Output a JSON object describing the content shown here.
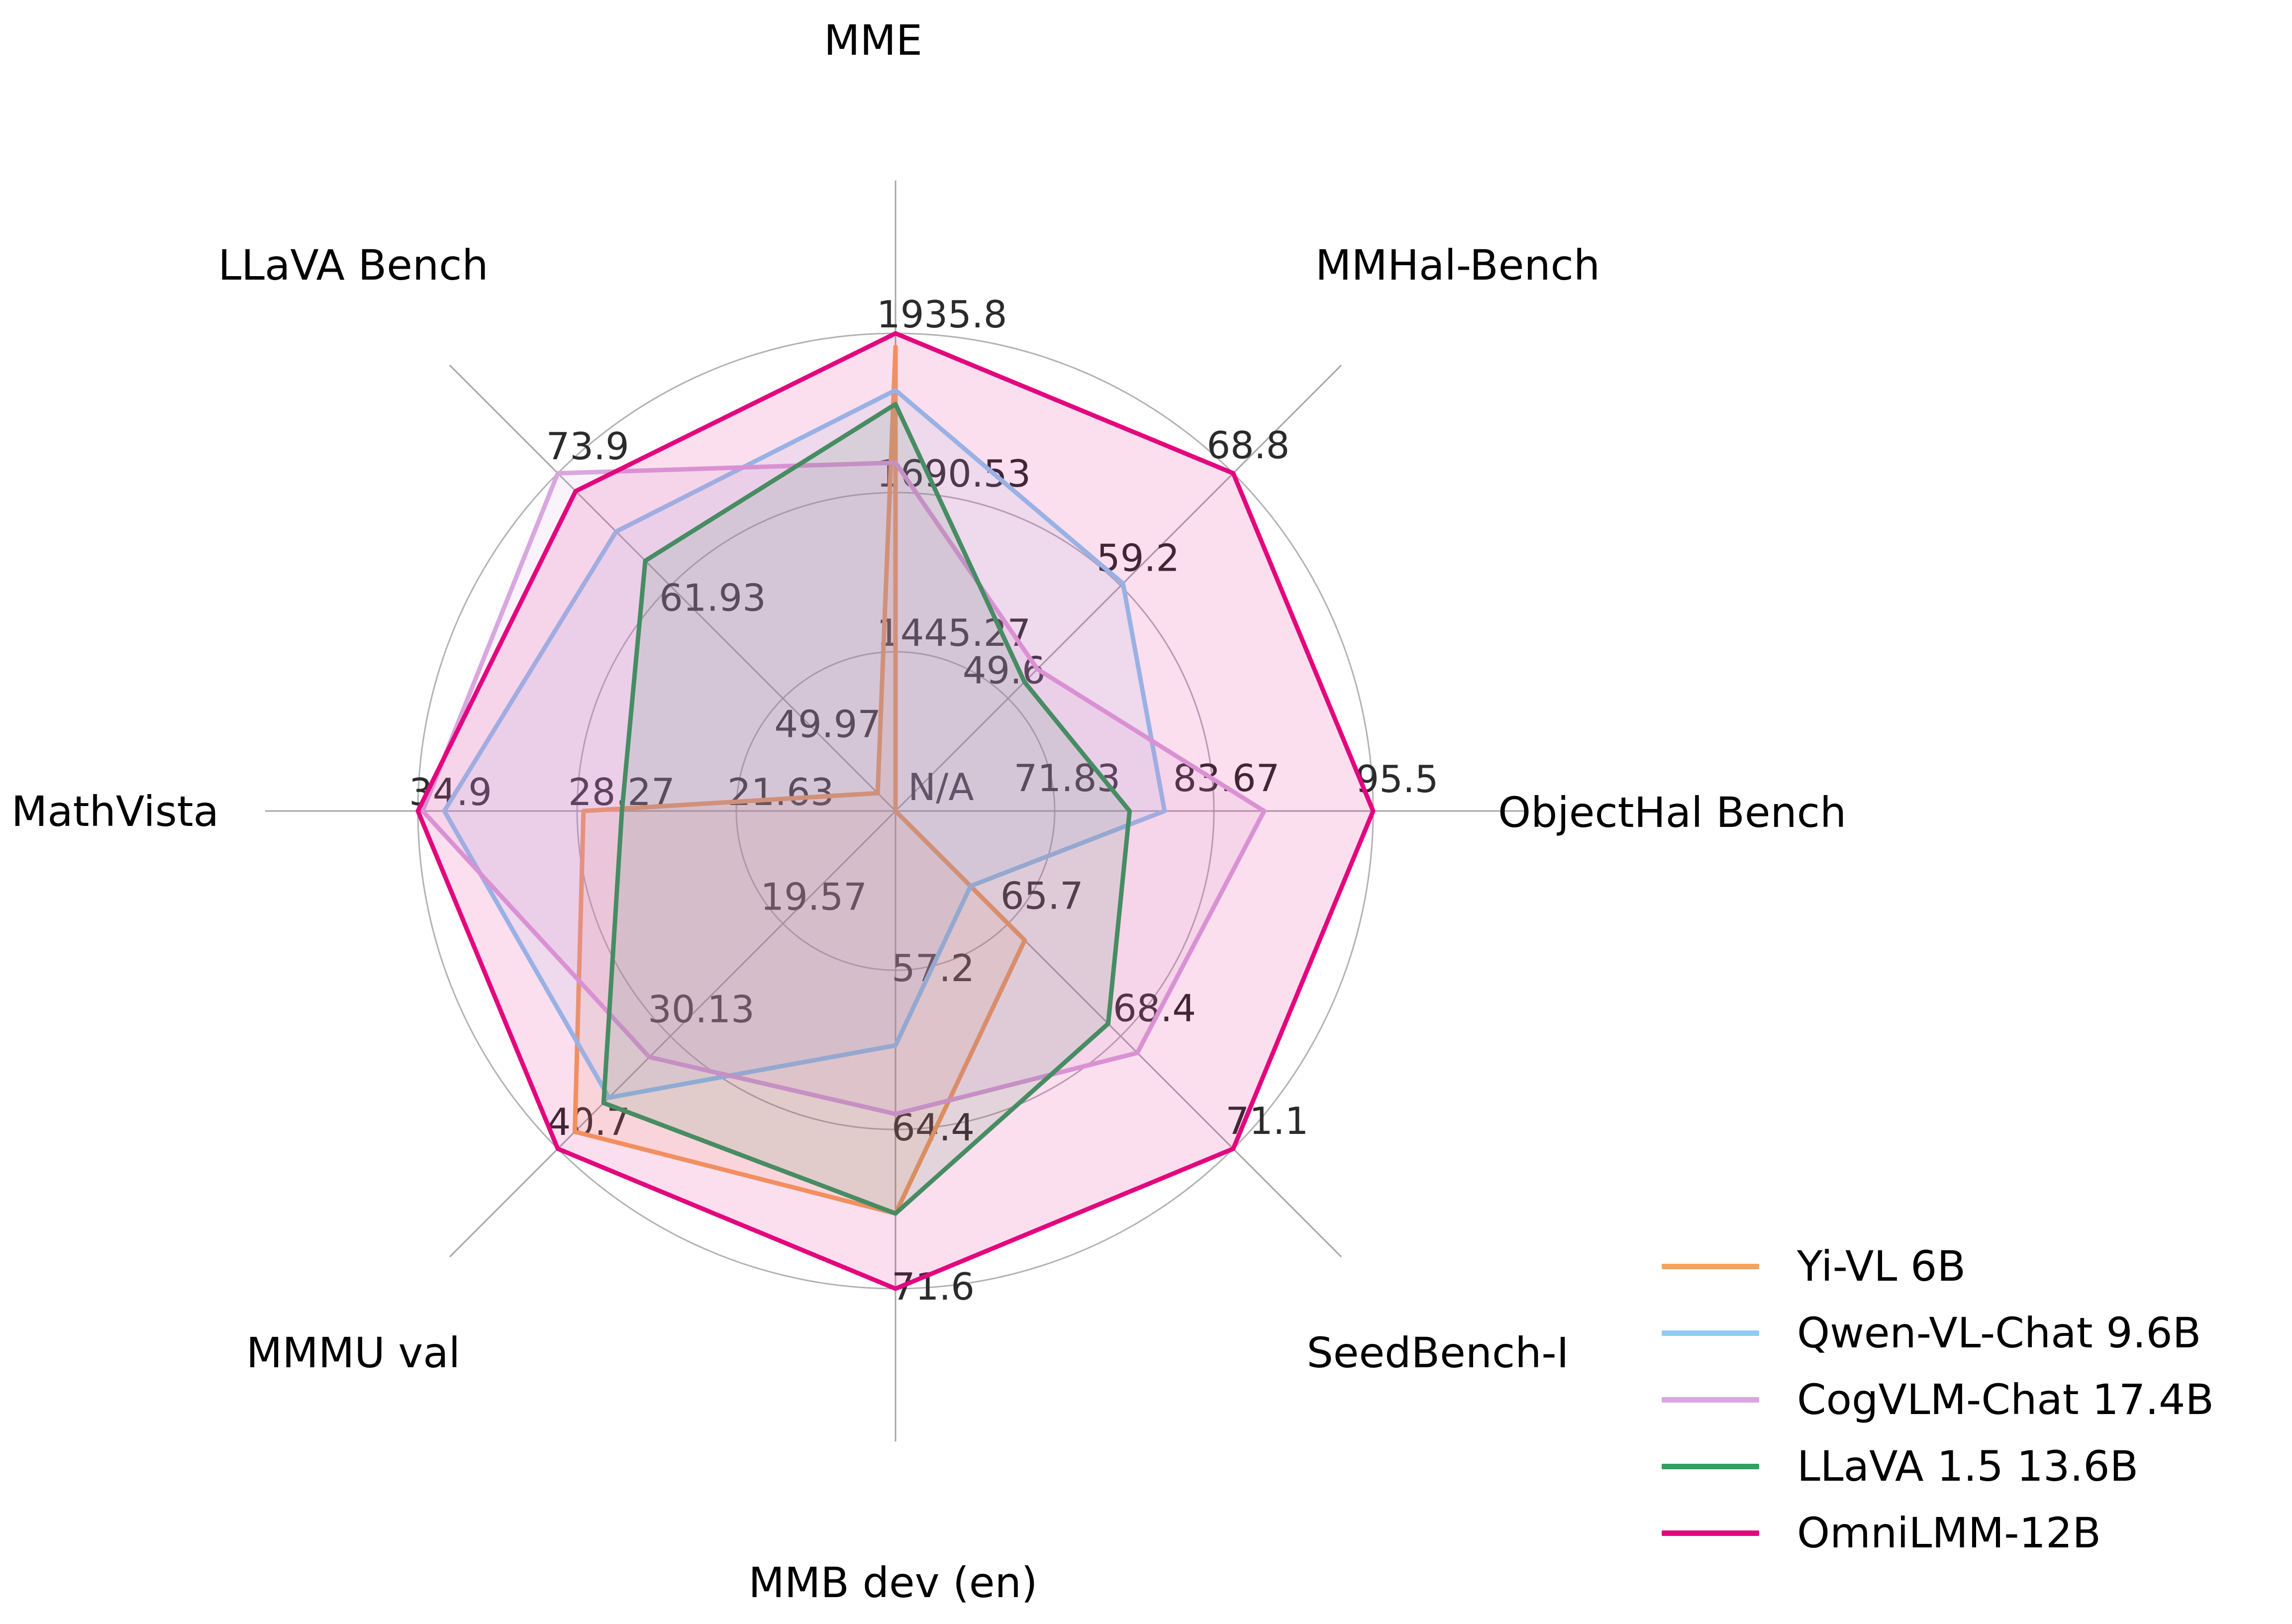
{
  "figure": {
    "background": "#ffffff"
  },
  "chart_data": {
    "type": "radar",
    "axes": [
      {
        "label": "MME",
        "min": 1200,
        "max": 1935.8,
        "tick_labels": [
          "1445.27",
          "1690.53",
          "1935.8"
        ]
      },
      {
        "label": "MMHal-Bench",
        "min": 40,
        "max": 68.8,
        "tick_labels": [
          "49.6",
          "59.2",
          "68.8"
        ]
      },
      {
        "label": "ObjectHal Bench",
        "min": 60,
        "max": 95.5,
        "tick_labels": [
          "71.83",
          "83.67",
          "95.5"
        ]
      },
      {
        "label": "SeedBench-I",
        "min": 63,
        "max": 71.1,
        "tick_labels": [
          "65.7",
          "68.4",
          "71.1"
        ]
      },
      {
        "label": "MMB dev (en)",
        "min": 50,
        "max": 71.6,
        "tick_labels": [
          "57.2",
          "64.4",
          "71.6"
        ]
      },
      {
        "label": "MMMU val",
        "min": 9,
        "max": 40.7,
        "tick_labels": [
          "19.57",
          "30.13",
          "40.7"
        ]
      },
      {
        "label": "MathVista",
        "min": 15,
        "max": 34.9,
        "tick_labels": [
          "21.63",
          "28.27",
          "34.9"
        ]
      },
      {
        "label": "LLaVA Bench",
        "min": 38,
        "max": 73.9,
        "tick_labels": [
          "49.97",
          "61.93",
          "73.9"
        ]
      }
    ],
    "center_label": "N/A",
    "rings": 3,
    "grid": {
      "ring_color": "#b4b0b4",
      "spoke_color": "#a8a4a8"
    },
    "legend_position": "bottom-right",
    "series": [
      {
        "name": "Yi-VL 6B",
        "color": "#f5a35c",
        "values": [
          1915.1,
          null,
          null,
          66.1,
          68.2,
          39.1,
          28.0,
          39.9
        ]
      },
      {
        "name": "Qwen-VL-Chat 9.6B",
        "color": "#8fcbf4",
        "values": [
          1848.3,
          59.4,
          80.0,
          64.8,
          60.6,
          35.9,
          33.8,
          67.7
        ]
      },
      {
        "name": "CogVLM-Chat 17.4B",
        "color": "#d9a6e0",
        "values": [
          1736.6,
          52.1,
          87.4,
          68.8,
          63.7,
          32.1,
          34.7,
          73.9
        ]
      },
      {
        "name": "LLaVA 1.5 13.6B",
        "color": "#31a060",
        "values": [
          1826.7,
          51.0,
          77.4,
          68.1,
          68.2,
          36.4,
          26.4,
          64.6
        ]
      },
      {
        "name": "OmniLMM-12B",
        "color": "#e3067e",
        "values": [
          1935.8,
          68.8,
          95.5,
          71.1,
          71.6,
          40.7,
          34.9,
          72.0
        ]
      }
    ]
  },
  "legend": {
    "items": [
      {
        "label": "Yi-VL 6B"
      },
      {
        "label": "Qwen-VL-Chat 9.6B"
      },
      {
        "label": "CogVLM-Chat 17.4B"
      },
      {
        "label": "LLaVA 1.5 13.6B"
      },
      {
        "label": "OmniLMM-12B"
      }
    ]
  }
}
